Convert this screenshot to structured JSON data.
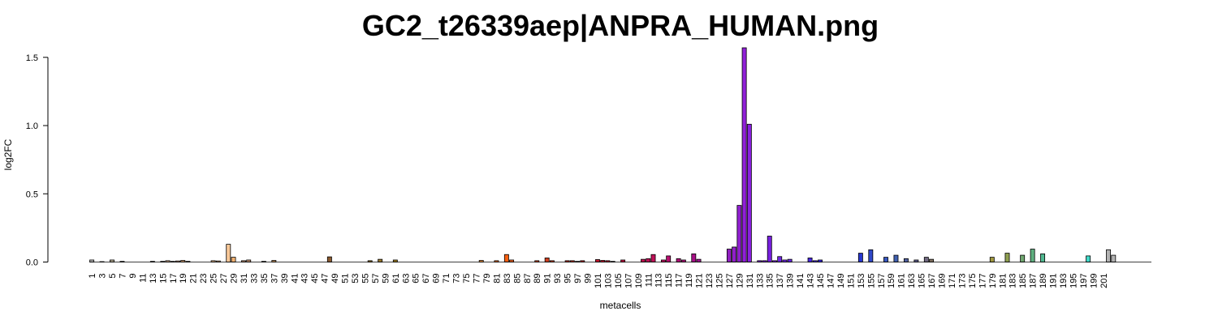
{
  "chart_data": {
    "type": "bar",
    "title": "GC2_t26339aep|ANPRA_HUMAN.png",
    "xlabel": "metacells",
    "ylabel": "log2FC",
    "ylim": [
      0,
      1.57
    ],
    "yticks": [
      0.0,
      0.5,
      1.0,
      1.5
    ],
    "ytick_labels": [
      "0.0",
      "0.5",
      "1.0",
      "1.5"
    ],
    "xtick_labels": [
      "1",
      "3",
      "5",
      "7",
      "9",
      "11",
      "13",
      "15",
      "17",
      "19",
      "21",
      "23",
      "25",
      "27",
      "29",
      "31",
      "33",
      "35",
      "37",
      "39",
      "41",
      "43",
      "45",
      "47",
      "49",
      "51",
      "53",
      "55",
      "57",
      "59",
      "61",
      "63",
      "65",
      "67",
      "69",
      "71",
      "73",
      "75",
      "77",
      "79",
      "81",
      "83",
      "85",
      "87",
      "89",
      "91",
      "93",
      "95",
      "97",
      "99",
      "101",
      "103",
      "105",
      "107",
      "109",
      "111",
      "113",
      "115",
      "117",
      "119",
      "121",
      "123",
      "125",
      "127",
      "129",
      "131",
      "133",
      "135",
      "137",
      "139",
      "141",
      "143",
      "145",
      "147",
      "149",
      "151",
      "153",
      "155",
      "157",
      "159",
      "161",
      "163",
      "165",
      "167",
      "169",
      "171",
      "173",
      "175",
      "177",
      "179",
      "181",
      "183",
      "185",
      "187",
      "189",
      "191",
      "193",
      "195",
      "197",
      "199",
      "201"
    ],
    "values": [
      0.015,
      0.0,
      0.003,
      0.0,
      0.015,
      0.0,
      0.005,
      0.0,
      0.0,
      0.0,
      0.0,
      0.0,
      0.005,
      0.0,
      0.005,
      0.01,
      0.005,
      0.008,
      0.012,
      0.005,
      0.0,
      0.0,
      0.0,
      0.0,
      0.01,
      0.008,
      0.0,
      0.13,
      0.035,
      0.0,
      0.01,
      0.015,
      0.0,
      0.0,
      0.005,
      0.0,
      0.012,
      0.0,
      0.0,
      0.0,
      0.0,
      0.0,
      0.0,
      0.0,
      0.0,
      0.0,
      0.0,
      0.038,
      0.0,
      0.0,
      0.0,
      0.0,
      0.0,
      0.0,
      0.0,
      0.01,
      0.0,
      0.02,
      0.0,
      0.0,
      0.015,
      0.0,
      0.0,
      0.0,
      0.0,
      0.0,
      0.0,
      0.0,
      0.0,
      0.0,
      0.0,
      0.0,
      0.0,
      0.0,
      0.0,
      0.0,
      0.0,
      0.012,
      0.0,
      0.0,
      0.01,
      0.0,
      0.055,
      0.015,
      0.0,
      0.0,
      0.0,
      0.0,
      0.01,
      0.0,
      0.03,
      0.01,
      0.0,
      0.0,
      0.01,
      0.01,
      0.005,
      0.01,
      0.0,
      0.0,
      0.018,
      0.012,
      0.01,
      0.005,
      0.0,
      0.015,
      0.0,
      0.0,
      0.0,
      0.02,
      0.025,
      0.055,
      0.0,
      0.015,
      0.045,
      0.0,
      0.025,
      0.015,
      0.0,
      0.06,
      0.02,
      0.0,
      0.0,
      0.0,
      0.0,
      0.0,
      0.095,
      0.11,
      0.415,
      1.57,
      1.01,
      0.0,
      0.01,
      0.01,
      0.19,
      0.01,
      0.04,
      0.015,
      0.02,
      0.0,
      0.0,
      0.0,
      0.03,
      0.01,
      0.015,
      0.0,
      0.0,
      0.0,
      0.0,
      0.0,
      0.0,
      0.0,
      0.065,
      0.0,
      0.09,
      0.0,
      0.0,
      0.035,
      0.0,
      0.05,
      0.0,
      0.025,
      0.0,
      0.015,
      0.0,
      0.035,
      0.02,
      0.0,
      0.0,
      0.0,
      0.0,
      0.0,
      0.0,
      0.0,
      0.0,
      0.0,
      0.0,
      0.0,
      0.035,
      0.0,
      0.0,
      0.065,
      0.0,
      0.0,
      0.05,
      0.0,
      0.095,
      0.0,
      0.06,
      0.0,
      0.0,
      0.0,
      0.0,
      0.0,
      0.0,
      0.0,
      0.0,
      0.045,
      0.0,
      0.0,
      0.0,
      0.09,
      0.05,
      0.0,
      0.0,
      0.0,
      0.0,
      0.0,
      0.0,
      0.0
    ],
    "colors": [
      "#b3b3b3",
      "#b3b3b3",
      "#b8b896",
      "#b8b896",
      "#b0a890",
      "#b0a890",
      "#a89888",
      "#a89888",
      "#a08070",
      "#a08070",
      "#b09080",
      "#b09080",
      "#c8a080",
      "#c8a080",
      "#d8b090",
      "#d8b090",
      "#d8a890",
      "#d8a890",
      "#c89870",
      "#c89870",
      "#c8a080",
      "#c8a080",
      "#d8b090",
      "#d8b090",
      "#e8b888",
      "#e8b888",
      "#f0c090",
      "#f8c898",
      "#f0b070",
      "#d09060",
      "#c09070",
      "#c09070",
      "#b08860",
      "#b08860",
      "#c09868",
      "#c09868",
      "#c09060",
      "#c09060",
      "#b08050",
      "#b08050",
      "#a07040",
      "#a07040",
      "#906030",
      "#906030",
      "#805020",
      "#805020",
      "#8a5a30",
      "#8a5a30",
      "#9a6a40",
      "#9a6a40",
      "#8a6a30",
      "#8a6a30",
      "#7a5a20",
      "#7a5a20",
      "#8a6a20",
      "#8a6a20",
      "#9a7a30",
      "#9a7a30",
      "#aa8a30",
      "#aa8a30",
      "#9a7a20",
      "#9a7a20",
      "#8a6a20",
      "#8a6a20",
      "#9a7a30",
      "#9a7a30",
      "#aa8a40",
      "#aa8a40",
      "#ba9a40",
      "#ba9a40",
      "#ca9a40",
      "#ca9a40",
      "#da9a40",
      "#da9a40",
      "#e89a40",
      "#e89a40",
      "#e89040",
      "#e89040",
      "#e88030",
      "#e88030",
      "#f07020",
      "#f07020",
      "#f86010",
      "#e86020",
      "#e05820",
      "#e05820",
      "#d85020",
      "#d85020",
      "#d84820",
      "#d84820",
      "#d04020",
      "#d04020",
      "#c83820",
      "#c83820",
      "#c03020",
      "#c03020",
      "#c02828",
      "#c02828",
      "#c82030",
      "#c82030",
      "#c81830",
      "#c81830",
      "#c01838",
      "#c01838",
      "#c01040",
      "#c01040",
      "#c01048",
      "#c01048",
      "#c01050",
      "#c01050",
      "#c01058",
      "#c01058",
      "#c01060",
      "#c01060",
      "#b81070",
      "#b81070",
      "#b01078",
      "#b01078",
      "#a81080",
      "#a81088",
      "#a01890",
      "#a01890",
      "#9820a0",
      "#9820a0",
      "#9020b0",
      "#9020b0",
      "#9020c0",
      "#9020c8",
      "#9020d0",
      "#9020d8",
      "#8a20e0",
      "#8a20e0",
      "#8020e0",
      "#8020e0",
      "#7820e0",
      "#7820e0",
      "#7028e0",
      "#7028e0",
      "#6828e0",
      "#6828e0",
      "#5828e0",
      "#5828e0",
      "#4828e0",
      "#4828e0",
      "#3828e0",
      "#3828e0",
      "#1810e8",
      "#1810e8",
      "#1010e8",
      "#1010e8",
      "#2828d8",
      "#2828d8",
      "#2838d0",
      "#2838d0",
      "#3048c8",
      "#3048c8",
      "#3858c0",
      "#3858c0",
      "#4060b0",
      "#4060b0",
      "#5060a0",
      "#5060a0",
      "#606090",
      "#606090",
      "#706880",
      "#706880",
      "#807060",
      "#807060",
      "#907048",
      "#907048",
      "#a08030",
      "#a08030",
      "#b08828",
      "#b08828",
      "#c09020",
      "#c09020",
      "#b89828",
      "#b89828",
      "#a09840",
      "#a09840",
      "#90a050",
      "#90a050",
      "#80a060",
      "#80a060",
      "#70a870",
      "#70a870",
      "#60b080",
      "#60b080",
      "#50b890",
      "#50b890",
      "#48c0a0",
      "#48c0a0",
      "#40c8b0",
      "#40c8b0",
      "#40d0c0",
      "#40d0c0",
      "#40d8c8",
      "#40d8c8",
      "#40e0d0",
      "#40e0d0",
      "#40e8d8"
    ]
  }
}
